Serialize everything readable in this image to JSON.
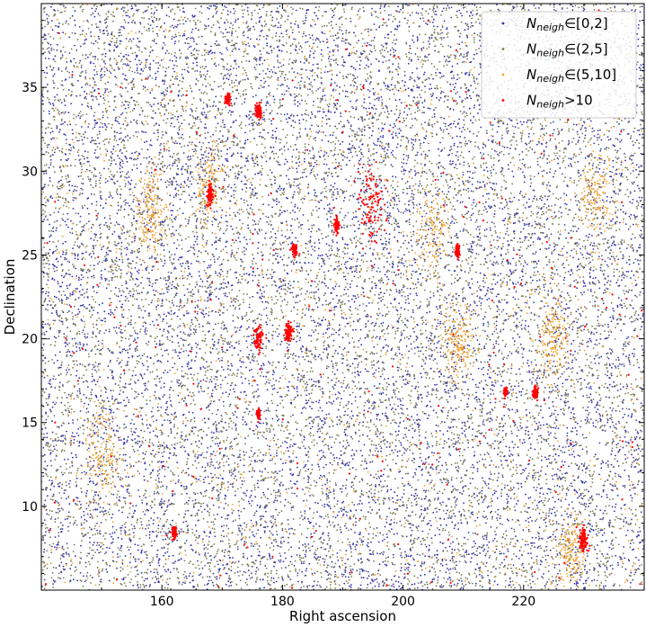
{
  "chart_data": {
    "type": "scatter",
    "title": "",
    "xlabel": "Right ascension",
    "ylabel": "Declination",
    "xlim": [
      140,
      240
    ],
    "ylim": [
      5,
      40
    ],
    "xticks": [
      160,
      180,
      200,
      220
    ],
    "yticks": [
      10,
      15,
      20,
      25,
      30,
      35
    ],
    "grid": false,
    "legend_position": "top-right",
    "series": [
      {
        "name": "N_neigh ∈ [0, 2]",
        "legend_main": "N",
        "legend_sub": "neigh",
        "legend_rest": "∈[0,2]",
        "color": "#3333aa",
        "point_count_approx": 9000
      },
      {
        "name": "N_neigh ∈ (2, 5]",
        "legend_main": "N",
        "legend_sub": "neigh",
        "legend_rest": "∈(2,5]",
        "color": "#7a7a55",
        "point_count_approx": 9000
      },
      {
        "name": "N_neigh ∈ (5, 10]",
        "legend_main": "N",
        "legend_sub": "neigh",
        "legend_rest": "∈(5,10]",
        "color": "#f0a030",
        "point_count_approx": 2500
      },
      {
        "name": "N_neigh > 10",
        "legend_main": "N",
        "legend_sub": "neigh",
        "legend_rest": ">10",
        "color": "#ff0000",
        "point_count_approx": 1500
      }
    ],
    "dense_clusters": [
      {
        "ra": 195,
        "dec": 27.9,
        "radius": 1.1,
        "series": 3
      },
      {
        "ra": 176,
        "dec": 20.0,
        "radius": 0.9,
        "series": 3
      },
      {
        "ra": 181,
        "dec": 20.4,
        "radius": 0.7,
        "series": 3
      },
      {
        "ra": 168,
        "dec": 28.6,
        "radius": 0.6,
        "series": 3
      },
      {
        "ra": 176,
        "dec": 33.6,
        "radius": 0.5,
        "series": 3
      },
      {
        "ra": 171,
        "dec": 34.3,
        "radius": 0.4,
        "series": 3
      },
      {
        "ra": 182,
        "dec": 25.3,
        "radius": 0.4,
        "series": 3
      },
      {
        "ra": 189,
        "dec": 26.8,
        "radius": 0.4,
        "series": 3
      },
      {
        "ra": 230,
        "dec": 8.0,
        "radius": 0.8,
        "series": 3
      },
      {
        "ra": 222,
        "dec": 16.8,
        "radius": 0.4,
        "series": 3
      },
      {
        "ra": 162,
        "dec": 8.5,
        "radius": 0.4,
        "series": 3
      },
      {
        "ra": 176,
        "dec": 15.5,
        "radius": 0.3,
        "series": 3
      },
      {
        "ra": 209,
        "dec": 25.2,
        "radius": 0.4,
        "series": 3
      },
      {
        "ra": 217,
        "dec": 16.8,
        "radius": 0.3,
        "series": 3
      },
      {
        "ra": 228,
        "dec": 7.0,
        "radius": 1.2,
        "series": 2
      },
      {
        "ra": 232,
        "dec": 28.5,
        "radius": 1.5,
        "series": 2
      },
      {
        "ra": 168,
        "dec": 29.0,
        "radius": 1.2,
        "series": 2
      },
      {
        "ra": 205,
        "dec": 26.5,
        "radius": 1.5,
        "series": 2
      },
      {
        "ra": 150,
        "dec": 13.0,
        "radius": 1.5,
        "series": 2
      },
      {
        "ra": 225,
        "dec": 20.0,
        "radius": 1.3,
        "series": 2
      },
      {
        "ra": 158,
        "dec": 27.5,
        "radius": 1.2,
        "series": 2
      },
      {
        "ra": 209,
        "dec": 20.0,
        "radius": 1.2,
        "series": 2
      }
    ]
  }
}
